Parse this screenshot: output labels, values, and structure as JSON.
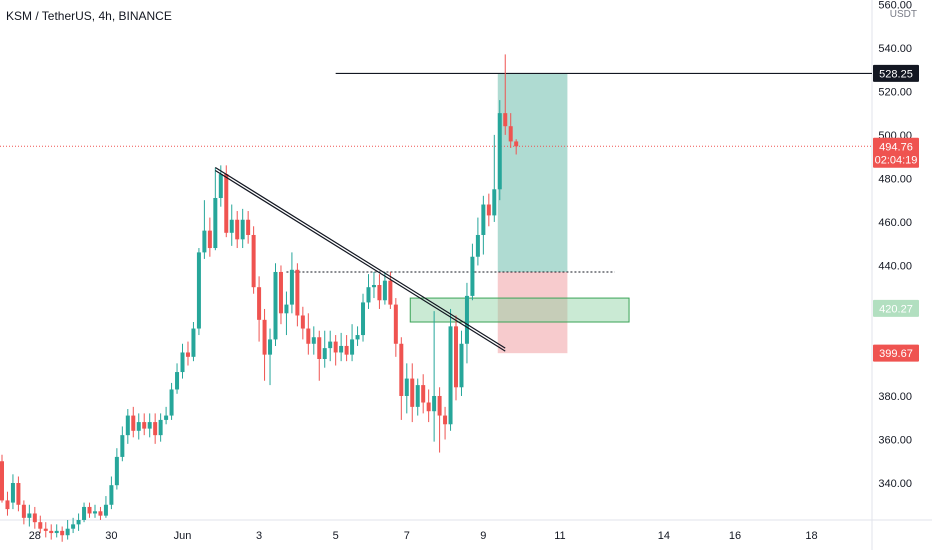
{
  "chart_data": {
    "type": "candlestick",
    "title": "KSM / TetherUS, 4h, BINANCE",
    "unit": "USDT",
    "ylim": [
      323,
      562
    ],
    "y_ticks": [
      340,
      360,
      380,
      400,
      420,
      440,
      460,
      480,
      500,
      520,
      540,
      560
    ],
    "y_tick_labels": [
      "340.00",
      "360.00",
      "380.00",
      "400.00",
      "420.00",
      "440.00",
      "460.00",
      "480.00",
      "500.00",
      "520.00",
      "540.00",
      "560.00"
    ],
    "x_tick_labels": [
      "28",
      "30",
      "Jun",
      "3",
      "5",
      "7",
      "9",
      "11",
      "14",
      "16",
      "18"
    ],
    "colors": {
      "up": "#26a69a",
      "down": "#ef5350",
      "zone_green": "#8ad1a0",
      "zone_red": "#f2a9ab",
      "target_fill": "#4daf9b",
      "trendline": "#131722"
    },
    "candles": [
      [
        350,
        332,
        353,
        331
      ],
      [
        332,
        328,
        336,
        325
      ],
      [
        331,
        340,
        344,
        328
      ],
      [
        340,
        330,
        343,
        327
      ],
      [
        330,
        324,
        332,
        321
      ],
      [
        324,
        326,
        330,
        320
      ],
      [
        326,
        322,
        329,
        319
      ],
      [
        322,
        319,
        325,
        317
      ],
      [
        319,
        318,
        322,
        315
      ],
      [
        318,
        317,
        321,
        314
      ],
      [
        317,
        318,
        321,
        315
      ],
      [
        318,
        316,
        320,
        313
      ],
      [
        316,
        319,
        323,
        314
      ],
      [
        319,
        321,
        324,
        317
      ],
      [
        321,
        323,
        326,
        318
      ],
      [
        323,
        329,
        331,
        322
      ],
      [
        329,
        326,
        331,
        324
      ],
      [
        326,
        327,
        330,
        324
      ],
      [
        327,
        325,
        329,
        323
      ],
      [
        325,
        330,
        334,
        324
      ],
      [
        330,
        339,
        343,
        328
      ],
      [
        339,
        352,
        356,
        337
      ],
      [
        352,
        362,
        366,
        350
      ],
      [
        362,
        371,
        374,
        358
      ],
      [
        371,
        364,
        375,
        361
      ],
      [
        364,
        368,
        372,
        360
      ],
      [
        368,
        365,
        372,
        362
      ],
      [
        365,
        368,
        372,
        361
      ],
      [
        368,
        362,
        372,
        358
      ],
      [
        362,
        369,
        372,
        359
      ],
      [
        369,
        371,
        375,
        367
      ],
      [
        371,
        383,
        386,
        369
      ],
      [
        383,
        391,
        395,
        381
      ],
      [
        391,
        400,
        404,
        388
      ],
      [
        400,
        398,
        405,
        394
      ],
      [
        398,
        411,
        414,
        396
      ],
      [
        411,
        446,
        448,
        408
      ],
      [
        446,
        456,
        470,
        443
      ],
      [
        456,
        448,
        462,
        444
      ],
      [
        448,
        471,
        485,
        447
      ],
      [
        471,
        482,
        486,
        467
      ],
      [
        482,
        455,
        486,
        453
      ],
      [
        455,
        461,
        468,
        449
      ],
      [
        461,
        452,
        465,
        448
      ],
      [
        452,
        461,
        466,
        448
      ],
      [
        461,
        454,
        465,
        450
      ],
      [
        454,
        430,
        458,
        427
      ],
      [
        430,
        415,
        435,
        405
      ],
      [
        415,
        399,
        420,
        387
      ],
      [
        399,
        406,
        411,
        385
      ],
      [
        406,
        437,
        441,
        403
      ],
      [
        437,
        418,
        440,
        413
      ],
      [
        418,
        422,
        428,
        408
      ],
      [
        422,
        438,
        446,
        418
      ],
      [
        438,
        417,
        441,
        412
      ],
      [
        417,
        411,
        421,
        406
      ],
      [
        411,
        404,
        418,
        399
      ],
      [
        404,
        407,
        412,
        399
      ],
      [
        407,
        397,
        410,
        387
      ],
      [
        397,
        402,
        410,
        393
      ],
      [
        402,
        405,
        410,
        396
      ],
      [
        405,
        400,
        408,
        394
      ],
      [
        400,
        403,
        409,
        396
      ],
      [
        403,
        399,
        408,
        396
      ],
      [
        399,
        406,
        413,
        396
      ],
      [
        406,
        408,
        412,
        403
      ],
      [
        408,
        423,
        427,
        405
      ],
      [
        423,
        430,
        436,
        420
      ],
      [
        430,
        431,
        437,
        425
      ],
      [
        431,
        424,
        436,
        420
      ],
      [
        424,
        433,
        437,
        422
      ],
      [
        433,
        422,
        437,
        420
      ],
      [
        422,
        404,
        425,
        398
      ],
      [
        404,
        380,
        407,
        369
      ],
      [
        380,
        388,
        395,
        372
      ],
      [
        388,
        375,
        395,
        368
      ],
      [
        375,
        385,
        388,
        371
      ],
      [
        385,
        377,
        390,
        372
      ],
      [
        377,
        373,
        383,
        368
      ],
      [
        373,
        380,
        419,
        359
      ],
      [
        380,
        371,
        384,
        354
      ],
      [
        371,
        367,
        375,
        360
      ],
      [
        367,
        412,
        420,
        364
      ],
      [
        412,
        384,
        417,
        378
      ],
      [
        384,
        404,
        410,
        380
      ],
      [
        404,
        426,
        432,
        395
      ],
      [
        426,
        444,
        450,
        424
      ],
      [
        444,
        454,
        462,
        440
      ],
      [
        454,
        468,
        472,
        445
      ],
      [
        468,
        463,
        473,
        458
      ],
      [
        463,
        475,
        500,
        460
      ],
      [
        475,
        510,
        516,
        470
      ],
      [
        510,
        504,
        537,
        500
      ],
      [
        504,
        497,
        510,
        494
      ],
      [
        497,
        494.76,
        498,
        491
      ]
    ],
    "annotations": {
      "resistance_level": 528.25,
      "last_price": 494.76,
      "countdown": "02:04:19",
      "zone_level_green": 420.27,
      "stop_level_red": 399.67,
      "dotted_level": 437,
      "long_position": {
        "entry": 437,
        "target": 528.25,
        "stop": 399.67
      },
      "buy_zone": {
        "low": 414,
        "high": 425
      },
      "trendline": [
        {
          "candle": 39,
          "price": 485
        },
        {
          "candle": 92,
          "price": 402
        }
      ]
    }
  }
}
